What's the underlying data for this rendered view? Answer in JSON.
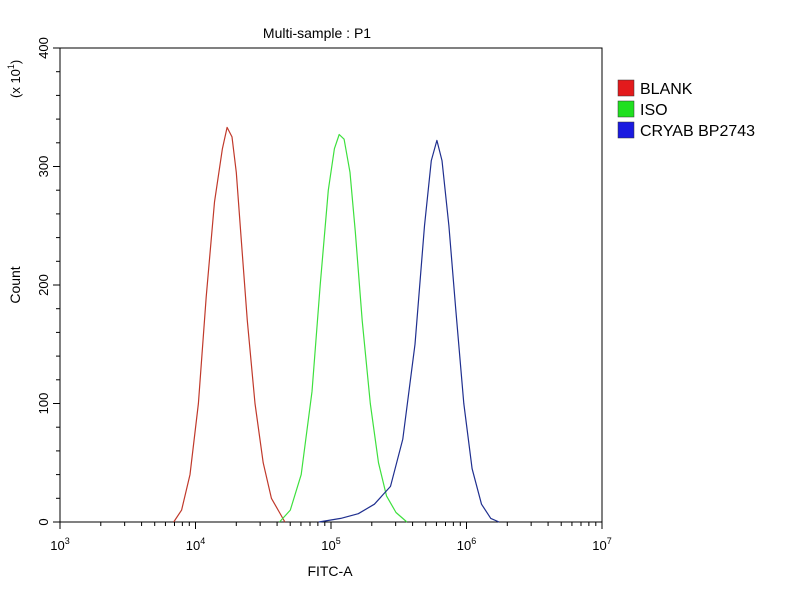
{
  "chart_data": {
    "type": "line",
    "title": "Multi-sample : P1",
    "xlabel": "FITC-A",
    "ylabel": "Count",
    "y_multiplier": "(x 10",
    "y_multiplier_exp": "1",
    "x_scale": "log",
    "xlim": [
      1000,
      10000000
    ],
    "ylim": [
      0,
      400
    ],
    "x_ticks": [
      {
        "base": "10",
        "exp": "3",
        "value": 1000
      },
      {
        "base": "10",
        "exp": "4",
        "value": 10000
      },
      {
        "base": "10",
        "exp": "5",
        "value": 100000
      },
      {
        "base": "10",
        "exp": "6",
        "value": 1000000
      },
      {
        "base": "10",
        "exp": "7",
        "value": 10000000
      }
    ],
    "y_ticks": [
      {
        "label": "0",
        "value": 0
      },
      {
        "label": "100",
        "value": 100
      },
      {
        "label": "200",
        "value": 200
      },
      {
        "label": "300",
        "value": 300
      },
      {
        "label": "400",
        "value": 400
      }
    ],
    "grid": false,
    "legend_position": "right",
    "series": [
      {
        "name": "BLANK",
        "color": "#e31a1c",
        "line_color": "#c0392b",
        "points": [
          [
            6900,
            0
          ],
          [
            7900,
            10
          ],
          [
            9100,
            40
          ],
          [
            10500,
            100
          ],
          [
            12000,
            190
          ],
          [
            13800,
            270
          ],
          [
            15800,
            315
          ],
          [
            17100,
            333
          ],
          [
            18600,
            325
          ],
          [
            20000,
            295
          ],
          [
            21700,
            240
          ],
          [
            24100,
            170
          ],
          [
            27500,
            100
          ],
          [
            31600,
            50
          ],
          [
            36300,
            20
          ],
          [
            41700,
            8
          ],
          [
            45700,
            0
          ]
        ]
      },
      {
        "name": "ISO",
        "color": "#20e020",
        "line_color": "#3ee03e",
        "points": [
          [
            41700,
            0
          ],
          [
            50100,
            10
          ],
          [
            60300,
            40
          ],
          [
            72400,
            110
          ],
          [
            83200,
            200
          ],
          [
            95500,
            280
          ],
          [
            106000,
            315
          ],
          [
            115000,
            327
          ],
          [
            125000,
            323
          ],
          [
            138000,
            295
          ],
          [
            151000,
            245
          ],
          [
            170000,
            170
          ],
          [
            195000,
            100
          ],
          [
            224000,
            50
          ],
          [
            257000,
            22
          ],
          [
            302000,
            8
          ],
          [
            363000,
            0
          ]
        ]
      },
      {
        "name": "CRYAB BP2743",
        "color": "#1a1ae0",
        "line_color": "#1f2f8f",
        "points": [
          [
            81300,
            0
          ],
          [
            118000,
            3
          ],
          [
            159000,
            7
          ],
          [
            209000,
            15
          ],
          [
            275000,
            30
          ],
          [
            339000,
            70
          ],
          [
            417000,
            150
          ],
          [
            490000,
            250
          ],
          [
            550000,
            305
          ],
          [
            605000,
            322
          ],
          [
            660000,
            305
          ],
          [
            741000,
            250
          ],
          [
            832000,
            180
          ],
          [
            955000,
            100
          ],
          [
            1100000,
            45
          ],
          [
            1290000,
            15
          ],
          [
            1510000,
            3
          ],
          [
            1740000,
            0
          ]
        ]
      }
    ]
  }
}
